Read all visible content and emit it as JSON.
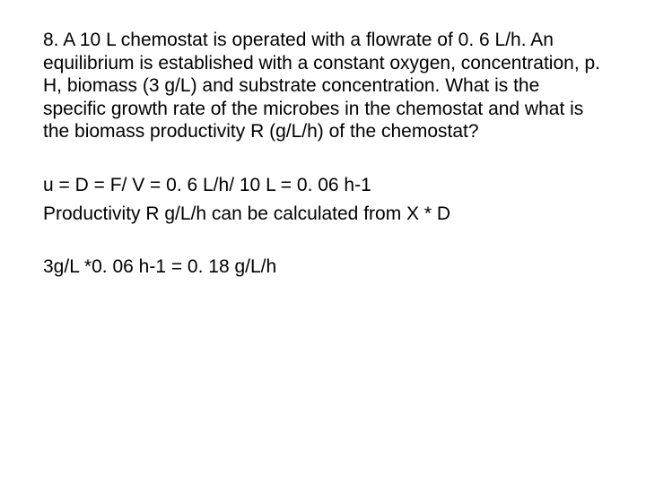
{
  "slide": {
    "background_color": "#ffffff",
    "text_color": "#000000",
    "font_family": "Arial, Helvetica, sans-serif",
    "font_size_pt": 16,
    "question": "8. A 10 L chemostat is operated with a flowrate of  0. 6 L/h. An equilibrium is established with a constant oxygen, concentration, p. H, biomass (3 g/L) and substrate concentration. What is the specific growth rate of the microbes in the chemostat and what is the biomass productivity R (g/L/h) of the chemostat?",
    "answer_line_1": "u = D = F/ V = 0. 6 L/h/ 10 L = 0. 06 h-1",
    "answer_line_2": "Productivity R g/L/h can be calculated from X * D",
    "answer_line_3": "3g/L *0. 06 h-1 = 0. 18 g/L/h"
  }
}
